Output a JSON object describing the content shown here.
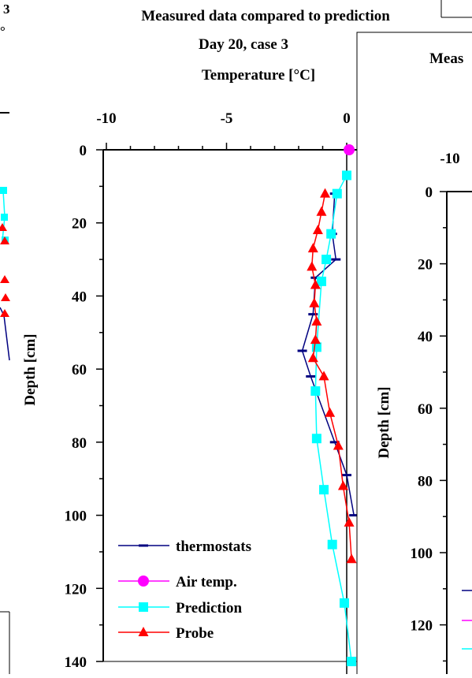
{
  "chart_data": [
    {
      "type": "line",
      "title": "Measured data compared to prediction",
      "subtitle": "Day 20, case 3",
      "xlabel": "Temperature [°C]",
      "ylabel": "Depth [cm]",
      "x_ticks": [
        "-10",
        "-5",
        "0"
      ],
      "y_ticks": [
        "0",
        "20",
        "40",
        "60",
        "80",
        "100",
        "120",
        "140"
      ],
      "xlim": [
        -10,
        0.3
      ],
      "ylim": [
        0,
        140
      ],
      "y_inverted": true,
      "legend_position": "bottom-left",
      "series": [
        {
          "name": "thermostats",
          "color": "#000080",
          "marker": "dash",
          "points": [
            [
              -0.5,
              12
            ],
            [
              -0.6,
              23
            ],
            [
              -0.45,
              30
            ],
            [
              -1.3,
              35
            ],
            [
              -1.4,
              45
            ],
            [
              -1.85,
              55
            ],
            [
              -1.5,
              62
            ],
            [
              -0.5,
              80
            ],
            [
              0,
              89
            ],
            [
              0.3,
              100
            ]
          ]
        },
        {
          "name": "Air temp.",
          "color": "#ff00ff",
          "marker": "circle",
          "points": [
            [
              0.1,
              0
            ]
          ]
        },
        {
          "name": "Prediction",
          "color": "#00ffff",
          "marker": "square",
          "points": [
            [
              0,
              7
            ],
            [
              -0.4,
              12
            ],
            [
              -0.65,
              23
            ],
            [
              -0.85,
              30
            ],
            [
              -1.05,
              36
            ],
            [
              -1.25,
              54
            ],
            [
              -1.3,
              66
            ],
            [
              -1.25,
              79
            ],
            [
              -0.95,
              93
            ],
            [
              -0.6,
              108
            ],
            [
              -0.1,
              124
            ],
            [
              0.2,
              140
            ]
          ]
        },
        {
          "name": "Probe",
          "color": "#ff0000",
          "marker": "triangle",
          "points": [
            [
              -0.9,
              12
            ],
            [
              -1.05,
              17
            ],
            [
              -1.2,
              22
            ],
            [
              -1.4,
              27
            ],
            [
              -1.45,
              32
            ],
            [
              -1.3,
              37
            ],
            [
              -1.35,
              42
            ],
            [
              -1.25,
              47
            ],
            [
              -1.3,
              52
            ],
            [
              -1.4,
              57
            ],
            [
              -0.95,
              62
            ],
            [
              -0.7,
              72
            ],
            [
              -0.35,
              81
            ],
            [
              -0.15,
              92
            ],
            [
              0.1,
              102
            ],
            [
              0.2,
              112
            ]
          ]
        }
      ]
    },
    {
      "type": "line",
      "title": "Meas",
      "xlabel": "",
      "ylabel": "Depth [cm]",
      "x_ticks": [
        "-10"
      ],
      "y_ticks": [
        "0",
        "20",
        "40",
        "60",
        "80",
        "100",
        "120"
      ],
      "ylim": [
        0,
        130
      ],
      "legend_colors": [
        "#000080",
        "#ff00ff",
        "#00ffff"
      ]
    }
  ],
  "left_fragment": {
    "title_fragment": "3",
    "subtitle_fragment": "°"
  }
}
